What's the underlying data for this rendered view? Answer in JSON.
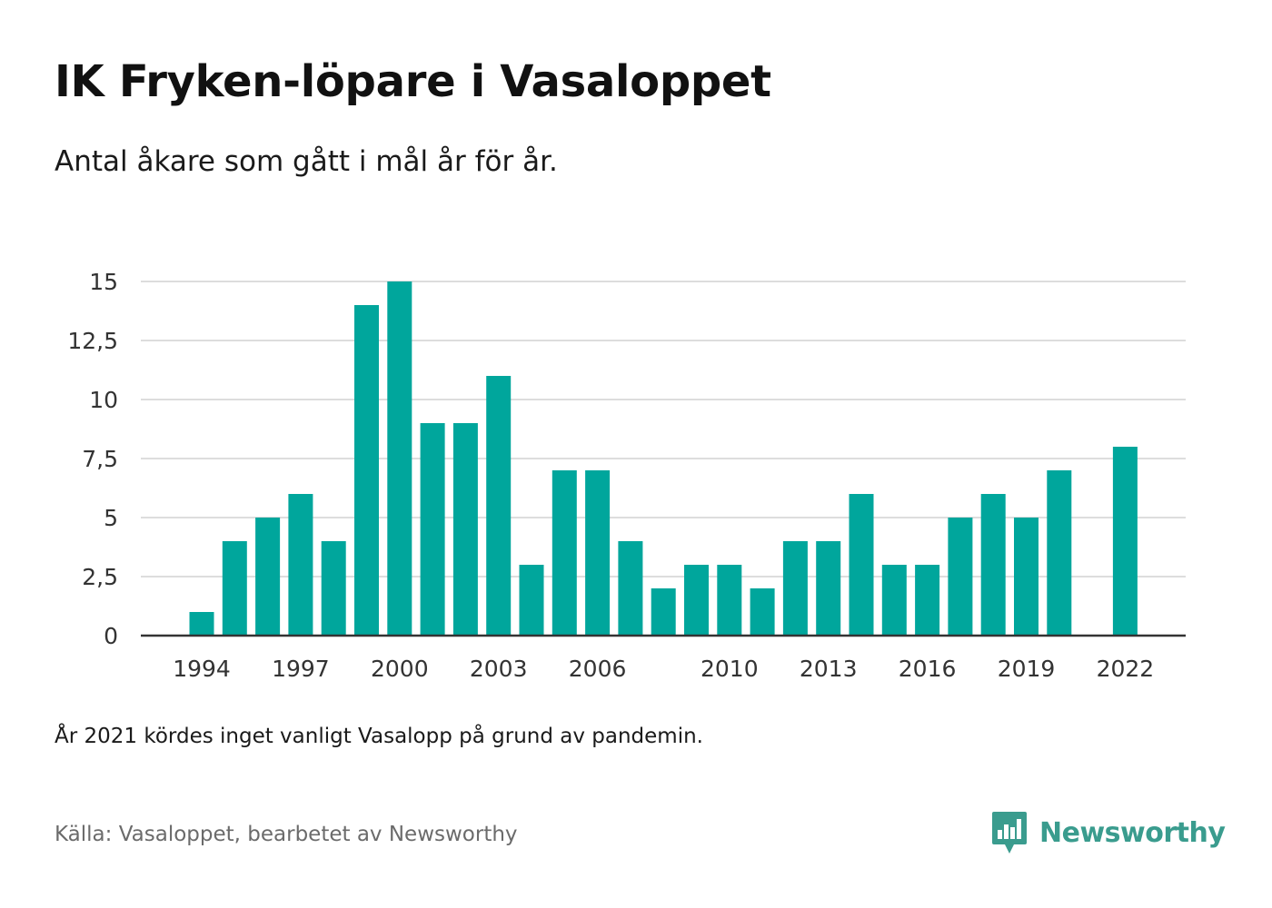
{
  "title": "IK Fryken-löpare i Vasaloppet",
  "subtitle": "Antal åkare som gått i mål år för år.",
  "note": "År 2021 kördes inget vanligt Vasalopp på grund av pandemin.",
  "source": "Källa: Vasaloppet, bearbetet av Newsworthy",
  "brand": {
    "name": "Newsworthy",
    "color": "#3a9c8e",
    "icon": "newsworthy-logo-icon"
  },
  "colors": {
    "bar": "#00a69c",
    "grid": "#dddddd",
    "axis": "#333333"
  },
  "chart_data": {
    "type": "bar",
    "x": [
      1994,
      1995,
      1996,
      1997,
      1998,
      1999,
      2000,
      2001,
      2002,
      2003,
      2004,
      2005,
      2006,
      2007,
      2008,
      2009,
      2010,
      2011,
      2012,
      2013,
      2014,
      2015,
      2016,
      2017,
      2018,
      2019,
      2020,
      2021,
      2022
    ],
    "values": [
      1,
      4,
      5,
      6,
      4,
      14,
      15,
      9,
      9,
      11,
      3,
      7,
      7,
      4,
      2,
      3,
      3,
      2,
      4,
      4,
      6,
      3,
      3,
      5,
      6,
      5,
      7,
      null,
      8
    ],
    "xticks": [
      1994,
      1997,
      2000,
      2003,
      2006,
      2010,
      2013,
      2016,
      2019,
      2022
    ],
    "yticks": [
      "0",
      "2,5",
      "5",
      "7,5",
      "10",
      "12,5",
      "15"
    ],
    "ylim": [
      0,
      15
    ],
    "grid": true,
    "title": "IK Fryken-löpare i Vasaloppet",
    "xlabel": "",
    "ylabel": ""
  }
}
